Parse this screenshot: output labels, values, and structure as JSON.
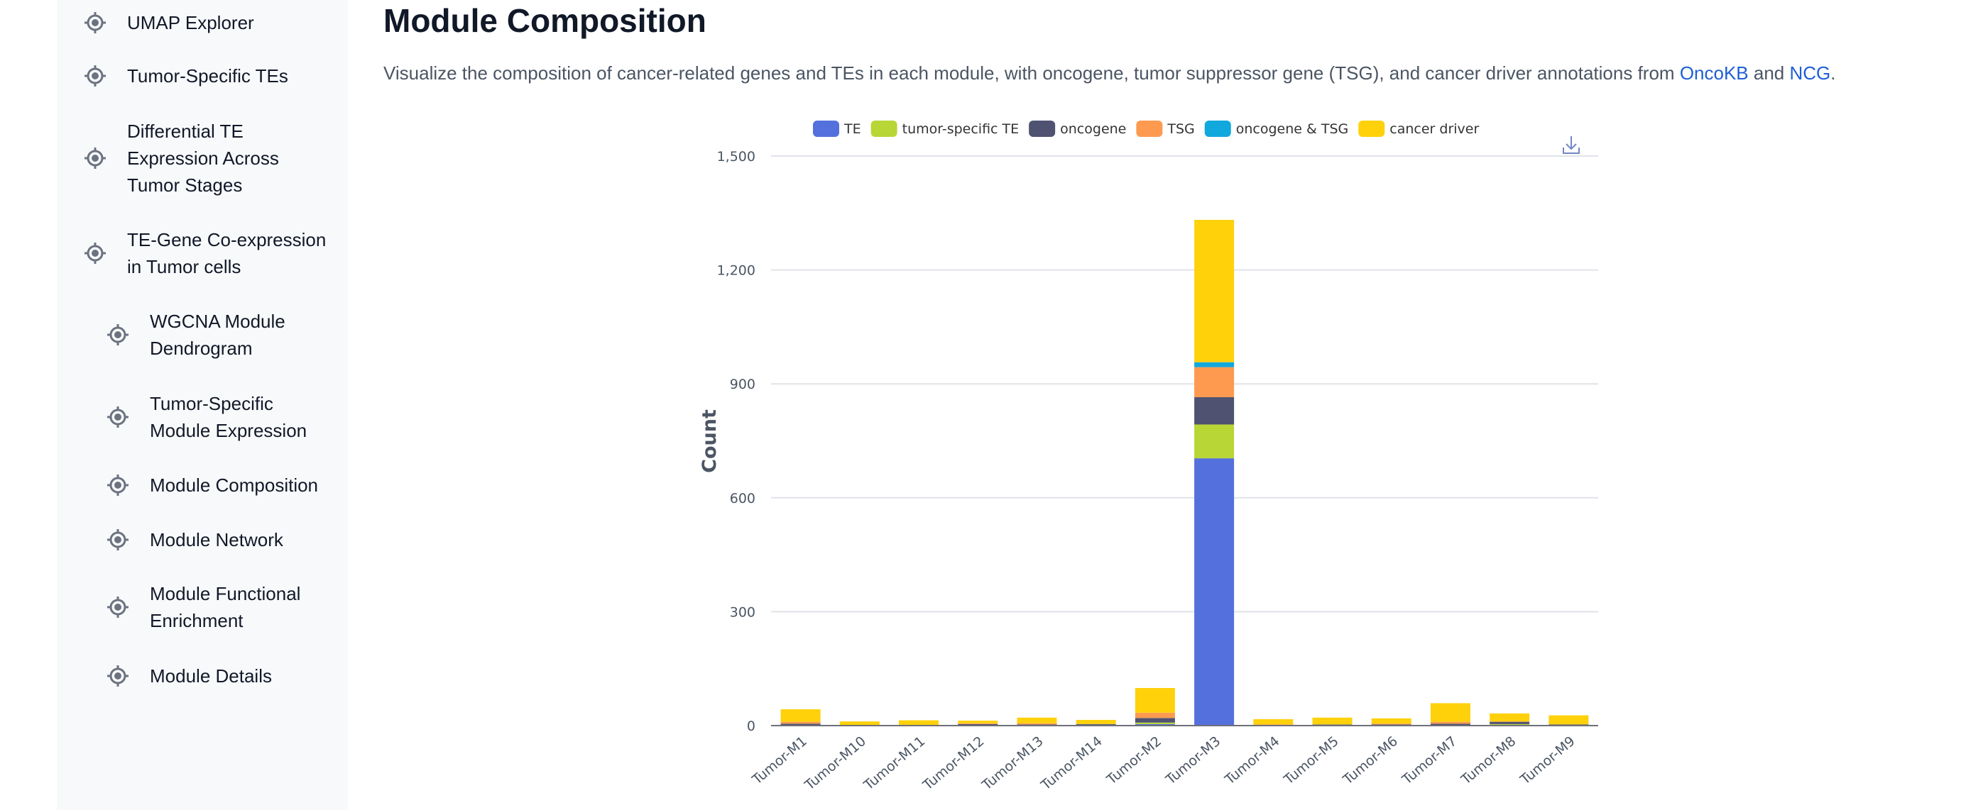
{
  "sidebar": {
    "items": [
      {
        "label": "UMAP Explorer",
        "level": 1
      },
      {
        "label": "Tumor-Specific TEs",
        "level": 1
      },
      {
        "label": "Differential TE Expression Across Tumor Stages",
        "level": 1
      },
      {
        "label": "TE-Gene Co-expression in Tumor cells",
        "level": 1
      },
      {
        "label": "WGCNA Module Dendrogram",
        "level": 2
      },
      {
        "label": "Tumor-Specific Module Expression",
        "level": 2
      },
      {
        "label": "Module Composition",
        "level": 2
      },
      {
        "label": "Module Network",
        "level": 2
      },
      {
        "label": "Module Functional Enrichment",
        "level": 2
      },
      {
        "label": "Module Details",
        "level": 2
      }
    ]
  },
  "main": {
    "title": "Module Composition",
    "description_pre": "Visualize the composition of cancer-related genes and TEs in each module, with oncogene, tumor suppressor gene (TSG), and cancer driver annotations from ",
    "link1": "OncoKB",
    "description_mid": " and ",
    "link2": "NCG",
    "description_post": "."
  },
  "chart_data": {
    "type": "bar",
    "stacked": true,
    "ylabel": "Count",
    "xlabel": "",
    "ylim": [
      0,
      1500
    ],
    "yticks": [
      "0",
      "300",
      "600",
      "900",
      "1,200",
      "1,500"
    ],
    "grid": true,
    "legend_position": "top",
    "download_icon": "download-icon",
    "categories": [
      "Tumor-M1",
      "Tumor-M10",
      "Tumor-M11",
      "Tumor-M12",
      "Tumor-M13",
      "Tumor-M14",
      "Tumor-M2",
      "Tumor-M3",
      "Tumor-M4",
      "Tumor-M5",
      "Tumor-M6",
      "Tumor-M7",
      "Tumor-M8",
      "Tumor-M9"
    ],
    "series": [
      {
        "name": "TE",
        "color": "#5470dd",
        "values": [
          1,
          0,
          0,
          0,
          0,
          0,
          4,
          704,
          0,
          0,
          0,
          0,
          2,
          0
        ]
      },
      {
        "name": "tumor-specific TE",
        "color": "#b8d635",
        "values": [
          0,
          1,
          0,
          0,
          0,
          2,
          4,
          89,
          0,
          2,
          0,
          0,
          2,
          0
        ]
      },
      {
        "name": "oncogene",
        "color": "#4f5270",
        "values": [
          4,
          0,
          1,
          4,
          3,
          2,
          12,
          72,
          0,
          1,
          3,
          5,
          6,
          3
        ]
      },
      {
        "name": "TSG",
        "color": "#fd9a4f",
        "values": [
          5,
          0,
          0,
          2,
          3,
          0,
          14,
          79,
          3,
          0,
          2,
          5,
          1,
          0
        ]
      },
      {
        "name": "oncogene & TSG",
        "color": "#10a8dd",
        "values": [
          0,
          0,
          0,
          0,
          0,
          0,
          0,
          13,
          0,
          0,
          0,
          0,
          0,
          0
        ]
      },
      {
        "name": "cancer driver",
        "color": "#fed10b",
        "values": [
          33,
          10,
          13,
          7,
          15,
          11,
          65,
          375,
          14,
          18,
          14,
          49,
          21,
          24
        ]
      }
    ]
  }
}
